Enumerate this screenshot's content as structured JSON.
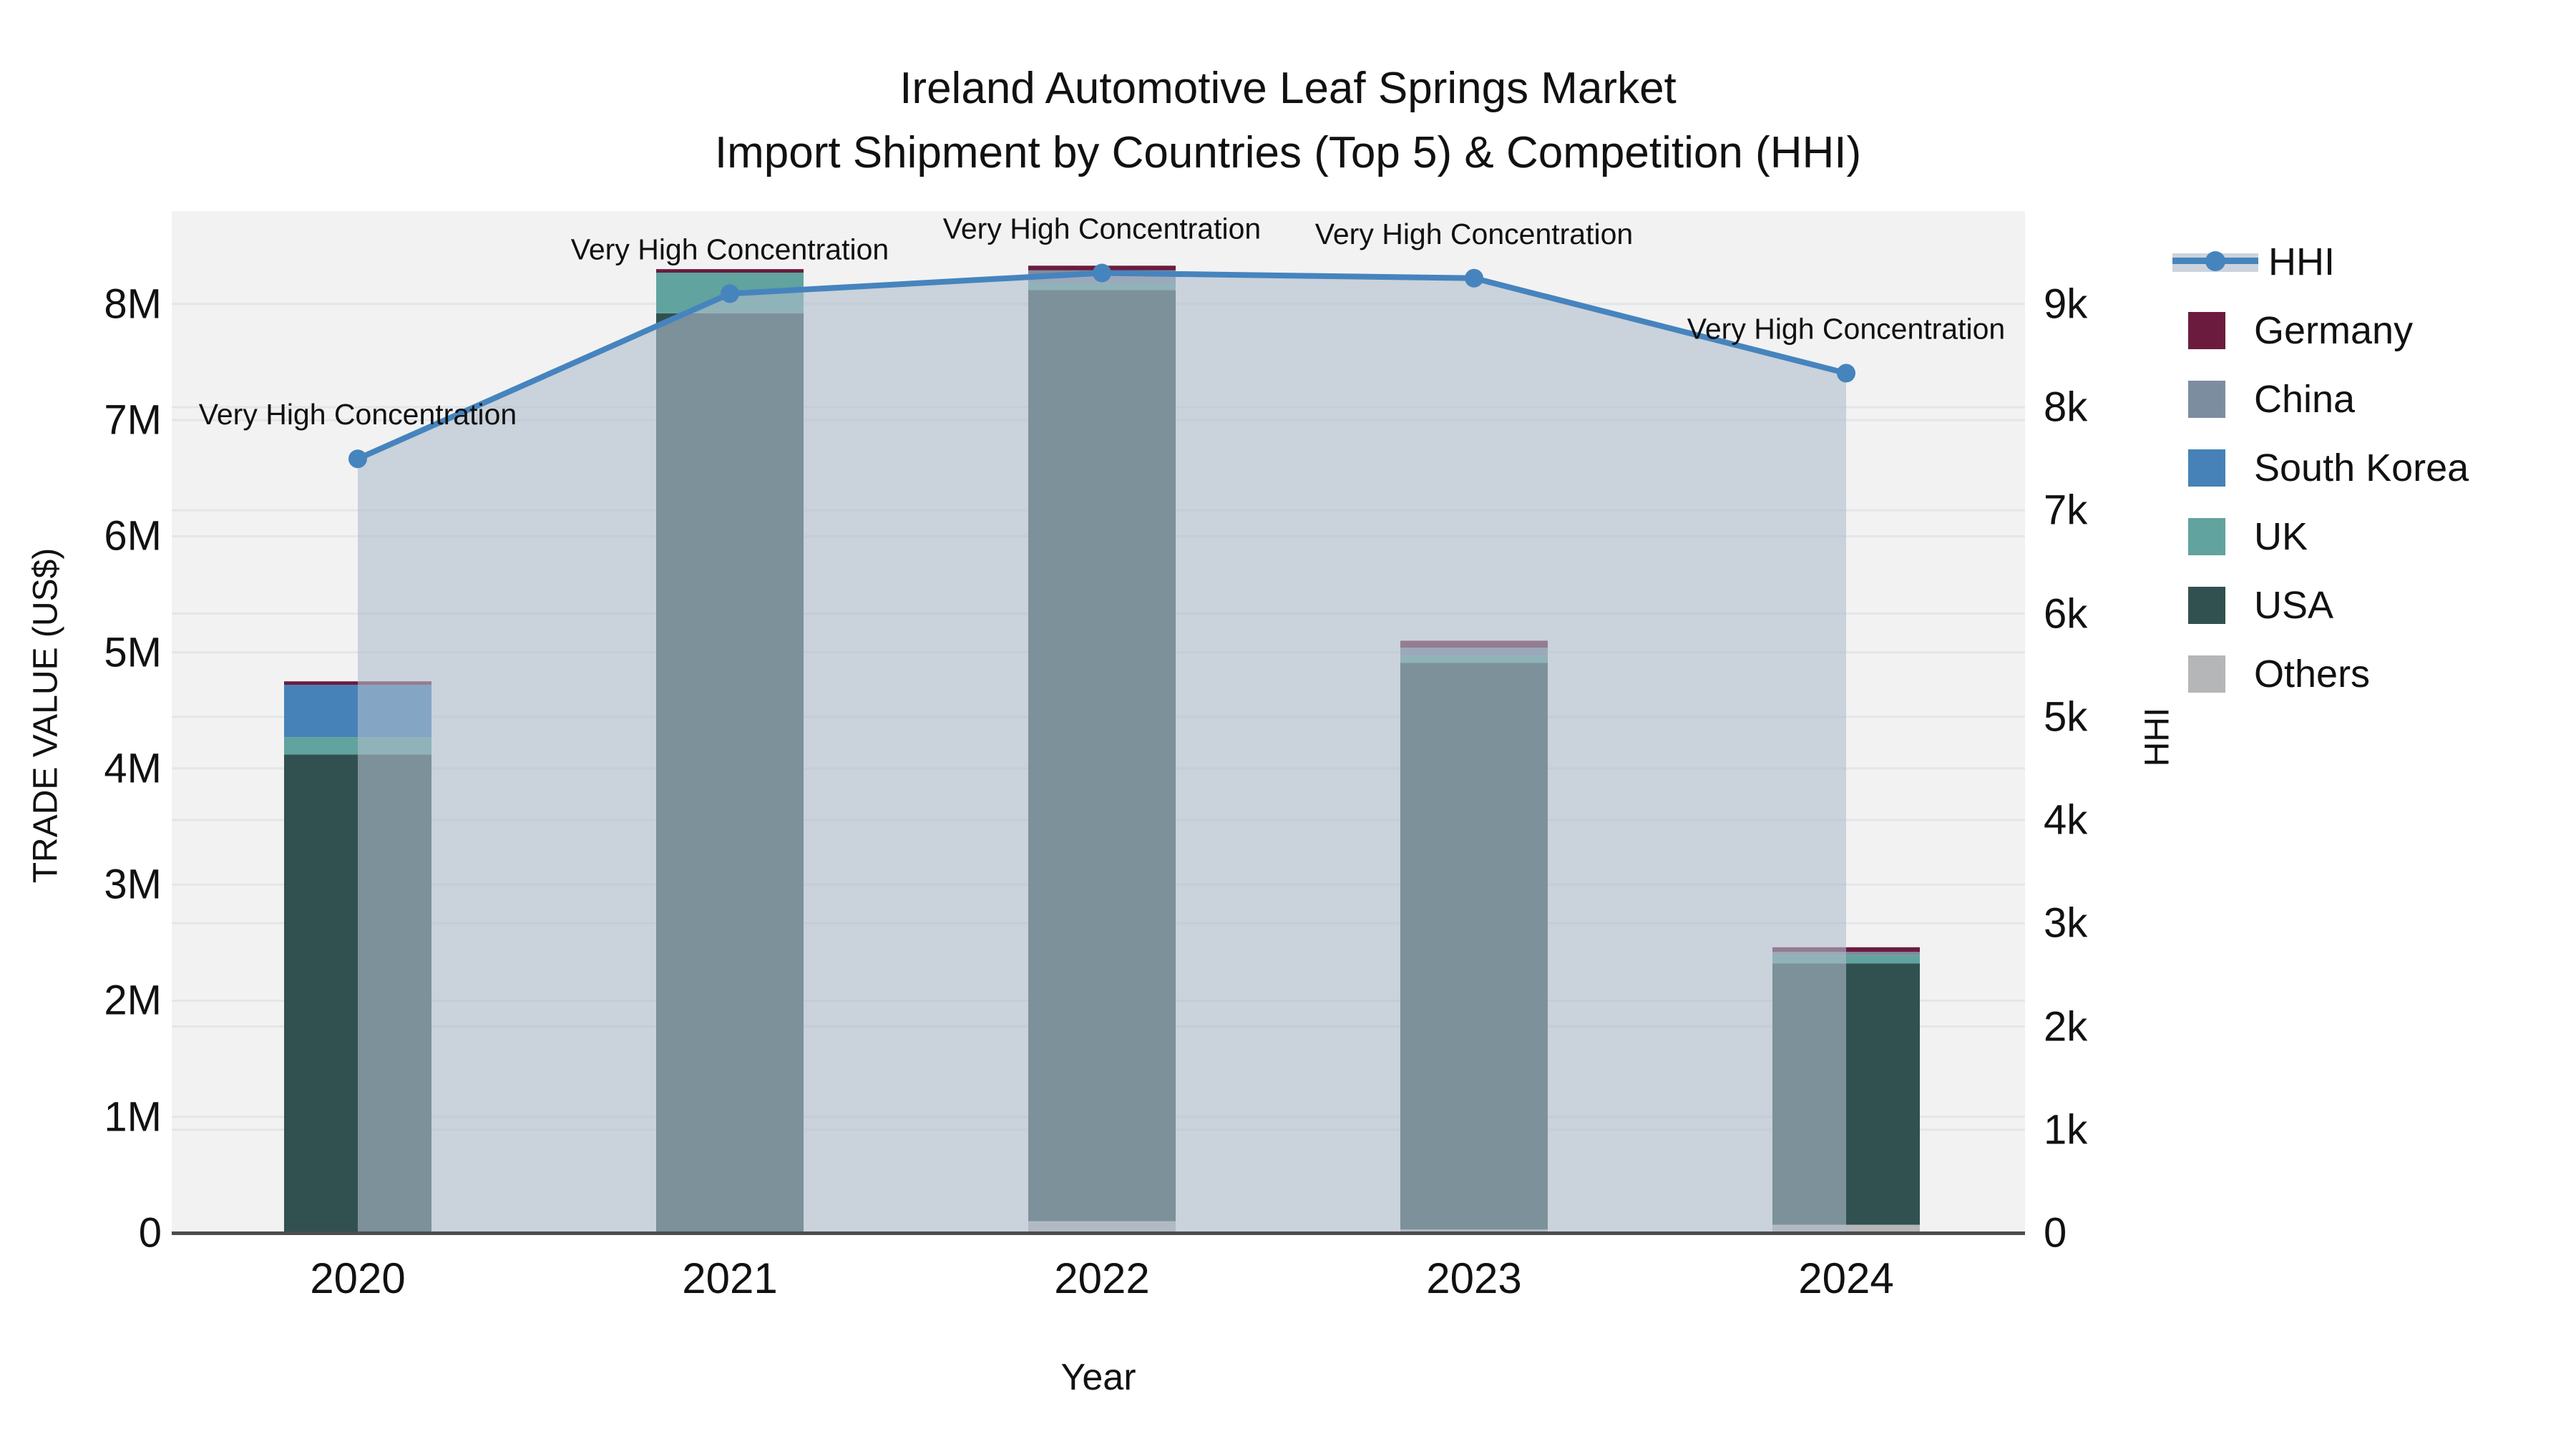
{
  "title": {
    "line1": "Ireland Automotive Leaf Springs Market",
    "line2": "Import Shipment by Countries (Top 5) & Competition (HHI)"
  },
  "axes": {
    "y_label": "TRADE VALUE (US$)",
    "y2_label": "HHI",
    "x_label": "Year",
    "y_ticks": [
      "0",
      "1M",
      "2M",
      "3M",
      "4M",
      "5M",
      "6M",
      "7M",
      "8M"
    ],
    "y2_ticks": [
      "0",
      "1k",
      "2k",
      "3k",
      "4k",
      "5k",
      "6k",
      "7k",
      "8k",
      "9k"
    ],
    "x_ticks": [
      "2020",
      "2021",
      "2022",
      "2023",
      "2024"
    ]
  },
  "colors": {
    "plot_background": "#f2f2f2",
    "gridline": "#e3e6e9",
    "axis_spine": "#4d4d4d",
    "hhi_line": "#4684be",
    "hhi_area": "rgba(175,188,203,0.6)",
    "germany": "#6b1c3e",
    "china": "#7d8da0",
    "south_korea": "#4682b8",
    "uk": "#61a39e",
    "usa": "#315150",
    "others": "#b4b6b8"
  },
  "chart_data": {
    "type": "bar+line",
    "title": "Ireland Automotive Leaf Springs Market — Import Shipment by Countries (Top 5) & Competition (HHI)",
    "xlabel": "Year",
    "ylabel": "TRADE VALUE (US$)",
    "y2label": "HHI",
    "categories": [
      "2020",
      "2021",
      "2022",
      "2023",
      "2024"
    ],
    "stack_order_bottom_to_top": [
      "Others",
      "USA",
      "UK",
      "South Korea",
      "China",
      "Germany"
    ],
    "series": [
      {
        "name": "Others",
        "color": "#b4b6b8",
        "values": [
          0,
          0,
          100000,
          30000,
          70000
        ]
      },
      {
        "name": "USA",
        "color": "#315150",
        "values": [
          4120000,
          7920000,
          8020000,
          4880000,
          2250000
        ]
      },
      {
        "name": "UK",
        "color": "#61a39e",
        "values": [
          150000,
          350000,
          60000,
          60000,
          70000
        ]
      },
      {
        "name": "South Korea",
        "color": "#4682b8",
        "values": [
          450000,
          0,
          0,
          0,
          0
        ]
      },
      {
        "name": "China",
        "color": "#7d8da0",
        "values": [
          0,
          0,
          110000,
          70000,
          30000
        ]
      },
      {
        "name": "Germany",
        "color": "#6b1c3e",
        "values": [
          30000,
          30000,
          40000,
          60000,
          40000
        ]
      }
    ],
    "bar_totals": [
      4750000,
      8300000,
      8330000,
      5100000,
      2460000
    ],
    "line": {
      "name": "HHI",
      "color": "#4684be",
      "area_fill": "rgba(175,188,203,0.6)",
      "values": [
        7500,
        9100,
        9300,
        9250,
        8330
      ],
      "axis": "right"
    },
    "annotation_text": "Very High Concentration",
    "annotations": [
      "Very High Concentration",
      "Very High Concentration",
      "Very High Concentration",
      "Very High Concentration",
      "Very High Concentration"
    ],
    "ylim": [
      0,
      8800000
    ],
    "y2lim": [
      0,
      9900
    ],
    "grid": "horizontal",
    "legend_position": "right"
  },
  "legend": {
    "items": [
      {
        "label": "HHI",
        "type": "line",
        "color": "#4684be"
      },
      {
        "label": "Germany",
        "type": "patch",
        "color": "#6b1c3e"
      },
      {
        "label": "China",
        "type": "patch",
        "color": "#7d8da0"
      },
      {
        "label": "South Korea",
        "type": "patch",
        "color": "#4682b8"
      },
      {
        "label": "UK",
        "type": "patch",
        "color": "#61a39e"
      },
      {
        "label": "USA",
        "type": "patch",
        "color": "#315150"
      },
      {
        "label": "Others",
        "type": "patch",
        "color": "#b4b6b8"
      }
    ]
  }
}
